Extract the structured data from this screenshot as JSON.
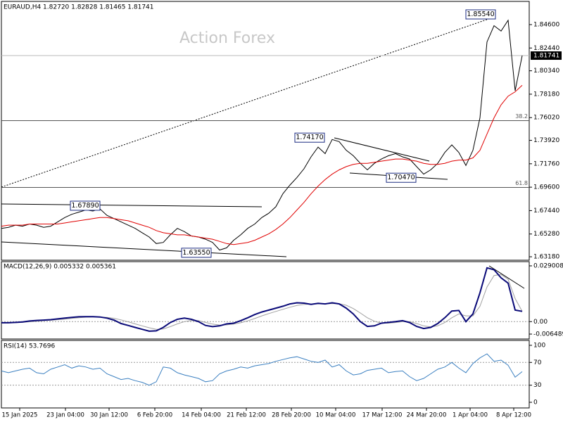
{
  "chart_data": [
    {
      "type": "line",
      "title": "EURAUD,H4  1.82720 1.82828 1.81465 1.81741",
      "watermark": "Action Forex",
      "x": [
        0,
        1,
        2,
        3,
        4,
        5,
        6,
        7,
        8,
        9,
        10,
        11,
        12,
        13,
        14,
        15,
        16,
        17,
        18,
        19,
        20,
        21,
        22,
        23,
        24,
        25,
        26,
        27,
        28,
        29,
        30,
        31,
        32,
        33,
        34,
        35,
        36,
        37,
        38,
        39,
        40,
        41,
        42,
        43,
        44,
        45,
        46,
        47,
        48,
        49,
        50,
        51,
        52,
        53,
        54,
        55,
        56,
        57,
        58,
        59,
        60,
        61,
        62,
        63,
        64,
        65,
        66,
        67,
        68,
        69,
        70,
        71,
        72,
        73,
        74
      ],
      "xlim": [
        0,
        75
      ],
      "ylim": [
        1.6286,
        1.8674
      ],
      "yticks": [
        {
          "value": 1.6318,
          "label": "1.63180"
        },
        {
          "value": 1.6528,
          "label": "1.65280"
        },
        {
          "value": 1.6744,
          "label": "1.67440"
        },
        {
          "value": 1.696,
          "label": "1.69600"
        },
        {
          "value": 1.7176,
          "label": "1.71760"
        },
        {
          "value": 1.7392,
          "label": "1.73920"
        },
        {
          "value": 1.7602,
          "label": "1.76020"
        },
        {
          "value": 1.7818,
          "label": "1.78180"
        },
        {
          "value": 1.8034,
          "label": "1.80340"
        },
        {
          "value": 1.8244,
          "label": "1.82440"
        },
        {
          "value": 1.846,
          "label": "1.84600"
        }
      ],
      "series": [
        {
          "color": "#000000",
          "values": [
            1.658,
            1.659,
            1.661,
            1.66,
            1.662,
            1.661,
            1.659,
            1.66,
            1.664,
            1.668,
            1.671,
            1.673,
            1.675,
            1.674,
            1.676,
            1.67,
            1.667,
            1.664,
            1.661,
            1.658,
            1.654,
            1.65,
            1.644,
            1.645,
            1.652,
            1.658,
            1.655,
            1.651,
            1.65,
            1.648,
            1.645,
            1.638,
            1.64,
            1.647,
            1.652,
            1.658,
            1.662,
            1.668,
            1.672,
            1.678,
            1.69,
            1.698,
            1.705,
            1.713,
            1.724,
            1.733,
            1.727,
            1.74,
            1.738,
            1.73,
            1.725,
            1.718,
            1.712,
            1.718,
            1.722,
            1.725,
            1.727,
            1.724,
            1.722,
            1.715,
            1.708,
            1.712,
            1.718,
            1.728,
            1.735,
            1.728,
            1.716,
            1.73,
            1.76,
            1.83,
            1.845,
            1.84,
            1.85,
            1.785,
            1.81741
          ]
        },
        {
          "color": "#e00000",
          "values": [
            1.66,
            1.661,
            1.661,
            1.661,
            1.662,
            1.662,
            1.662,
            1.662,
            1.662,
            1.663,
            1.664,
            1.665,
            1.666,
            1.667,
            1.668,
            1.668,
            1.667,
            1.666,
            1.665,
            1.663,
            1.661,
            1.659,
            1.656,
            1.654,
            1.653,
            1.652,
            1.652,
            1.651,
            1.65,
            1.649,
            1.648,
            1.646,
            1.644,
            1.643,
            1.644,
            1.645,
            1.647,
            1.65,
            1.653,
            1.657,
            1.662,
            1.668,
            1.675,
            1.682,
            1.69,
            1.697,
            1.703,
            1.708,
            1.712,
            1.715,
            1.717,
            1.718,
            1.718,
            1.719,
            1.72,
            1.721,
            1.722,
            1.722,
            1.721,
            1.72,
            1.718,
            1.717,
            1.717,
            1.718,
            1.72,
            1.721,
            1.721,
            1.723,
            1.73,
            1.745,
            1.76,
            1.772,
            1.78,
            1.784,
            1.79
          ]
        }
      ],
      "current_price": 1.81741,
      "levels": [
        {
          "label": "38.2",
          "value": 1.7574
        },
        {
          "label": "61.8",
          "value": 1.6958
        }
      ],
      "annotations": [
        {
          "label": "1.85540",
          "value": 1.8554,
          "x": 68.1
        },
        {
          "label": "1.74170",
          "value": 1.7417,
          "x": 43.8
        },
        {
          "label": "1.70470",
          "value": 1.7047,
          "x": 56.8
        },
        {
          "label": "1.67890",
          "value": 1.6789,
          "x": 11.9
        },
        {
          "label": "1.63550",
          "value": 1.6355,
          "x": 27.7
        }
      ]
    },
    {
      "type": "line",
      "title": "MACD(12,26,9) 0.005332 0.005361",
      "x": [
        0,
        1,
        2,
        3,
        4,
        5,
        6,
        7,
        8,
        9,
        10,
        11,
        12,
        13,
        14,
        15,
        16,
        17,
        18,
        19,
        20,
        21,
        22,
        23,
        24,
        25,
        26,
        27,
        28,
        29,
        30,
        31,
        32,
        33,
        34,
        35,
        36,
        37,
        38,
        39,
        40,
        41,
        42,
        43,
        44,
        45,
        46,
        47,
        48,
        49,
        50,
        51,
        52,
        53,
        54,
        55,
        56,
        57,
        58,
        59,
        60,
        61,
        62,
        63,
        64,
        65,
        66,
        67,
        68,
        69,
        70,
        71,
        72,
        73,
        74
      ],
      "xlim": [
        0,
        75
      ],
      "ylim": [
        -0.009051,
        0.031204
      ],
      "yticks": [
        0.029008,
        {
          "value": 0,
          "label": "0.00"
        },
        -0.006489
      ],
      "levels": [
        0
      ],
      "series": [
        {
          "color": "#a0a0a0",
          "values": [
            -0.0008,
            -0.0007,
            -0.0006,
            -0.0004,
            -0.0001,
            0.0002,
            0.0005,
            0.0007,
            0.001,
            0.0013,
            0.0017,
            0.002,
            0.0023,
            0.0024,
            0.0024,
            0.0022,
            0.0017,
            0.0009,
            -0.0001,
            -0.0012,
            -0.0022,
            -0.0032,
            -0.004,
            -0.0038,
            -0.0026,
            -0.0012,
            0.0,
            0.0006,
            0.0005,
            -0.0004,
            -0.0013,
            -0.0018,
            -0.0017,
            -0.0013,
            -0.0006,
            0.0004,
            0.0016,
            0.003,
            0.0042,
            0.0053,
            0.0064,
            0.0075,
            0.0084,
            0.009,
            0.0091,
            0.0092,
            0.0092,
            0.0094,
            0.0093,
            0.0085,
            0.0068,
            0.0045,
            0.002,
            0.0002,
            -0.0008,
            -0.0008,
            -0.0005,
            0.0,
            0.0,
            -0.001,
            -0.0022,
            -0.0028,
            -0.0022,
            -0.0005,
            0.002,
            0.004,
            0.003,
            0.003,
            0.008,
            0.018,
            0.024,
            0.0245,
            0.022,
            0.012,
            0.005361
          ]
        },
        {
          "color": "#0a0a78",
          "values": [
            -0.0006,
            -0.0006,
            -0.0004,
            -0.0002,
            0.0003,
            0.0006,
            0.0008,
            0.001,
            0.0014,
            0.0018,
            0.0022,
            0.0025,
            0.0026,
            0.0026,
            0.0024,
            0.0018,
            0.0008,
            -0.001,
            -0.002,
            -0.003,
            -0.004,
            -0.005,
            -0.0048,
            -0.003,
            -0.0005,
            0.0012,
            0.0018,
            0.0012,
            0.0,
            -0.002,
            -0.0026,
            -0.0022,
            -0.0012,
            -0.0008,
            0.0005,
            0.002,
            0.0037,
            0.005,
            0.006,
            0.007,
            0.008,
            0.0092,
            0.0098,
            0.0096,
            0.009,
            0.0095,
            0.0092,
            0.0098,
            0.0092,
            0.007,
            0.004,
            0.0,
            -0.0025,
            -0.0022,
            -0.0008,
            -0.0004,
            0.0,
            0.0005,
            -0.0005,
            -0.0025,
            -0.0036,
            -0.003,
            -0.001,
            0.002,
            0.0055,
            0.0058,
            0.0,
            0.004,
            0.015,
            0.028,
            0.027,
            0.0228,
            0.02,
            0.006,
            0.005332
          ]
        }
      ]
    },
    {
      "type": "line",
      "title": "RSI(14) 53.7696",
      "x": [
        0,
        1,
        2,
        3,
        4,
        5,
        6,
        7,
        8,
        9,
        10,
        11,
        12,
        13,
        14,
        15,
        16,
        17,
        18,
        19,
        20,
        21,
        22,
        23,
        24,
        25,
        26,
        27,
        28,
        29,
        30,
        31,
        32,
        33,
        34,
        35,
        36,
        37,
        38,
        39,
        40,
        41,
        42,
        43,
        44,
        45,
        46,
        47,
        48,
        49,
        50,
        51,
        52,
        53,
        54,
        55,
        56,
        57,
        58,
        59,
        60,
        61,
        62,
        63,
        64,
        65,
        66,
        67,
        68,
        69,
        70,
        71,
        72,
        73,
        74
      ],
      "xlim": [
        0,
        75
      ],
      "ylim": [
        -9.9,
        108.6
      ],
      "yticks": [
        0,
        30,
        70,
        100
      ],
      "levels": [
        70,
        30
      ],
      "xticks": [
        {
          "value": 2.6,
          "label": "15 Jan 2025"
        },
        {
          "value": 9.1,
          "label": "23 Jan 04:00"
        },
        {
          "value": 15.3,
          "label": "30 Jan 12:00"
        },
        {
          "value": 21.8,
          "label": "6 Feb 20:00"
        },
        {
          "value": 28.4,
          "label": "14 Feb 04:00"
        },
        {
          "value": 34.8,
          "label": "21 Feb 12:00"
        },
        {
          "value": 41.2,
          "label": "28 Feb 20:00"
        },
        {
          "value": 47.5,
          "label": "10 Mar 04:00"
        },
        {
          "value": 54.1,
          "label": "17 Mar 12:00"
        },
        {
          "value": 60.4,
          "label": "24 Mar 20:00"
        },
        {
          "value": 66.6,
          "label": "1 Apr 04:00"
        },
        {
          "value": 72.8,
          "label": "8 Apr 12:00"
        }
      ],
      "series": [
        {
          "color": "#3a7fc0",
          "values": [
            55,
            52,
            55,
            58,
            60,
            52,
            50,
            58,
            62,
            66,
            60,
            64,
            62,
            58,
            60,
            50,
            45,
            40,
            42,
            38,
            35,
            30,
            36,
            62,
            60,
            52,
            48,
            45,
            42,
            36,
            38,
            50,
            55,
            58,
            62,
            60,
            64,
            66,
            68,
            72,
            75,
            78,
            80,
            76,
            72,
            70,
            74,
            62,
            66,
            55,
            48,
            50,
            56,
            58,
            60,
            52,
            54,
            55,
            45,
            38,
            42,
            50,
            58,
            62,
            70,
            60,
            52,
            68,
            78,
            85,
            72,
            74,
            65,
            44,
            53.7696
          ]
        }
      ]
    }
  ]
}
